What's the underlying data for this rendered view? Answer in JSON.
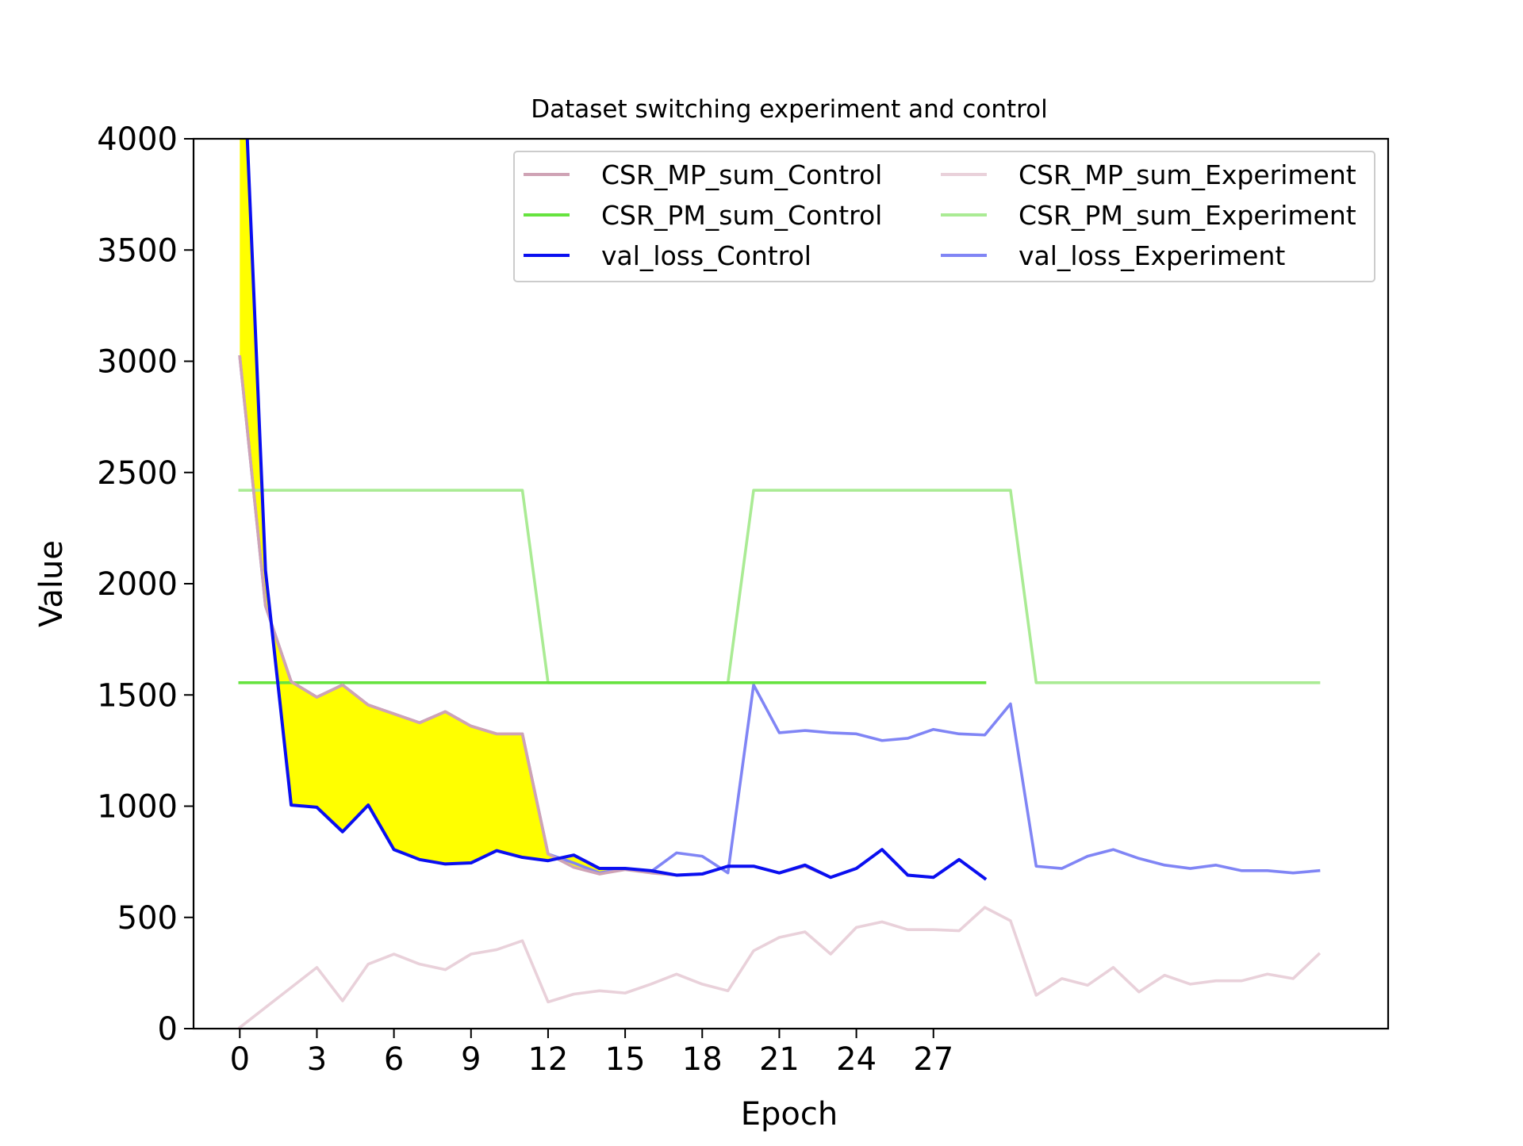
{
  "chart_data": {
    "type": "line",
    "title": "Dataset switching experiment and control",
    "xlabel": "Epoch",
    "ylabel": "Value",
    "xlim": [
      -1.8,
      44.7
    ],
    "ylim": [
      0,
      4000
    ],
    "xticks": [
      0,
      3,
      6,
      9,
      12,
      15,
      18,
      21,
      24,
      27
    ],
    "yticks": [
      0,
      500,
      1000,
      1500,
      2000,
      2500,
      3000,
      3500,
      4000
    ],
    "grid": false,
    "legend_position": "top-right",
    "legend_columns": 2,
    "series": [
      {
        "name": "CSR_MP_sum_Control",
        "color": "#cfa3b5",
        "x": [
          0,
          1,
          2,
          3,
          4,
          5,
          6,
          7,
          8,
          9,
          10,
          11,
          12,
          13,
          14,
          15,
          16,
          17,
          18,
          19,
          20,
          21,
          22,
          23,
          24,
          25,
          26,
          27,
          28,
          29
        ],
        "values": [
          3020,
          1900,
          1560,
          1490,
          1545,
          1455,
          1415,
          1375,
          1425,
          1360,
          1325,
          1325,
          785,
          725,
          695,
          715,
          700,
          690,
          695,
          730,
          730,
          700,
          730,
          680,
          720,
          805,
          690,
          680,
          760,
          675
        ]
      },
      {
        "name": "CSR_PM_sum_Control",
        "color": "#66e33f",
        "x": [
          0,
          1,
          2,
          3,
          4,
          5,
          6,
          7,
          8,
          9,
          10,
          11,
          12,
          13,
          14,
          15,
          16,
          17,
          18,
          19,
          20,
          21,
          22,
          23,
          24,
          25,
          26,
          27,
          28,
          29
        ],
        "values": [
          1555,
          1555,
          1555,
          1555,
          1555,
          1555,
          1555,
          1555,
          1555,
          1555,
          1555,
          1555,
          1555,
          1555,
          1555,
          1555,
          1555,
          1555,
          1555,
          1555,
          1555,
          1555,
          1555,
          1555,
          1555,
          1555,
          1555,
          1555,
          1555,
          1555
        ]
      },
      {
        "name": "val_loss_Control",
        "color": "#0a0ff0",
        "x": [
          0,
          1,
          2,
          3,
          4,
          5,
          6,
          7,
          8,
          9,
          10,
          11,
          12,
          13,
          14,
          15,
          16,
          17,
          18,
          19,
          20,
          21,
          22,
          23,
          24,
          25,
          26,
          27,
          28,
          29
        ],
        "values": [
          4800,
          2060,
          1005,
          995,
          885,
          1005,
          805,
          760,
          740,
          745,
          800,
          770,
          755,
          780,
          720,
          720,
          710,
          690,
          695,
          730,
          730,
          700,
          735,
          680,
          720,
          805,
          690,
          680,
          760,
          675
        ]
      },
      {
        "name": "CSR_MP_sum_Experiment",
        "color": "#e9d1da",
        "x": [
          0,
          1,
          2,
          3,
          4,
          5,
          6,
          7,
          8,
          9,
          10,
          11,
          12,
          13,
          14,
          15,
          16,
          17,
          18,
          19,
          20,
          21,
          22,
          23,
          24,
          25,
          26,
          27,
          28,
          29,
          30,
          31,
          32,
          33,
          34,
          35,
          36,
          37,
          38,
          39,
          40,
          41,
          42
        ],
        "values": [
          5,
          95,
          185,
          275,
          125,
          290,
          335,
          290,
          265,
          335,
          355,
          395,
          120,
          155,
          170,
          160,
          200,
          245,
          200,
          170,
          350,
          410,
          435,
          335,
          455,
          480,
          445,
          445,
          440,
          545,
          485,
          150,
          225,
          195,
          275,
          165,
          240,
          200,
          215,
          215,
          245,
          225,
          335
        ]
      },
      {
        "name": "CSR_PM_sum_Experiment",
        "color": "#aaeb94",
        "x": [
          0,
          1,
          2,
          3,
          4,
          5,
          6,
          7,
          8,
          9,
          10,
          11,
          12,
          13,
          14,
          15,
          16,
          17,
          18,
          19,
          20,
          21,
          22,
          23,
          24,
          25,
          26,
          27,
          28,
          29,
          30,
          31,
          32,
          33,
          34,
          35,
          36,
          37,
          38,
          39,
          40,
          41,
          42
        ],
        "values": [
          2420,
          2420,
          2420,
          2420,
          2420,
          2420,
          2420,
          2420,
          2420,
          2420,
          2420,
          2420,
          1555,
          1555,
          1555,
          1555,
          1555,
          1555,
          1555,
          1555,
          2420,
          2420,
          2420,
          2420,
          2420,
          2420,
          2420,
          2420,
          2420,
          2420,
          2420,
          1555,
          1555,
          1555,
          1555,
          1555,
          1555,
          1555,
          1555,
          1555,
          1555,
          1555,
          1555
        ]
      },
      {
        "name": "val_loss_Experiment",
        "color": "#8085f5",
        "x": [
          0,
          1,
          2,
          3,
          4,
          5,
          6,
          7,
          8,
          9,
          10,
          11,
          12,
          13,
          14,
          15,
          16,
          17,
          18,
          19,
          20,
          21,
          22,
          23,
          24,
          25,
          26,
          27,
          28,
          29,
          30,
          31,
          32,
          33,
          34,
          35,
          36,
          37,
          38,
          39,
          40,
          41,
          42
        ],
        "values": [
          3020,
          1900,
          1560,
          1490,
          1545,
          1455,
          1415,
          1375,
          1425,
          1360,
          1325,
          1325,
          785,
          745,
          700,
          720,
          705,
          790,
          775,
          700,
          1545,
          1330,
          1340,
          1330,
          1325,
          1295,
          1305,
          1345,
          1325,
          1320,
          1460,
          730,
          720,
          775,
          805,
          765,
          735,
          720,
          735,
          710,
          710,
          700,
          710
        ]
      }
    ],
    "fill_between": {
      "series_a": 2,
      "series_b": 0,
      "color": "#ffff00"
    }
  }
}
